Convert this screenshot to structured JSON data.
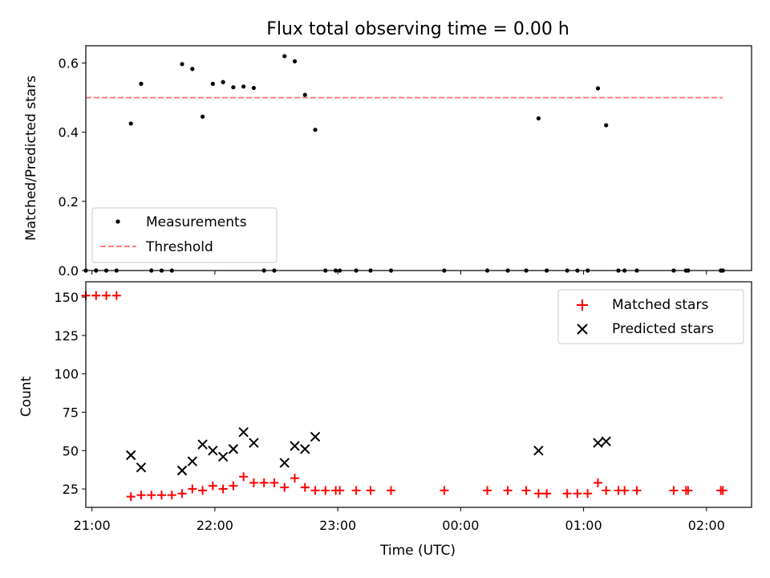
{
  "chart_data": [
    {
      "type": "scatter",
      "title": "Flux total observing time = 0.00 h",
      "xlabel": "",
      "ylabel": "Matched/Predicted stars",
      "xlim": [
        "20:57",
        "02:22"
      ],
      "ylim": [
        0,
        0.65
      ],
      "yticks": [
        "0.0",
        "0.2",
        "0.4",
        "0.6"
      ],
      "grid": false,
      "legend_position": "lower-left",
      "series": [
        {
          "name": "Measurements",
          "color": "#000000",
          "marker": "dot",
          "points": [
            [
              "20:57",
              0
            ],
            [
              "21:02",
              0
            ],
            [
              "21:07",
              0
            ],
            [
              "21:12",
              0
            ],
            [
              "21:19",
              0.425
            ],
            [
              "21:24",
              0.54
            ],
            [
              "21:29",
              0
            ],
            [
              "21:34",
              0
            ],
            [
              "21:39",
              0
            ],
            [
              "21:44",
              0.597
            ],
            [
              "21:49",
              0.583
            ],
            [
              "21:54",
              0.445
            ],
            [
              "21:59",
              0.54
            ],
            [
              "22:04",
              0.545
            ],
            [
              "22:09",
              0.53
            ],
            [
              "22:14",
              0.532
            ],
            [
              "22:19",
              0.528
            ],
            [
              "22:24",
              0
            ],
            [
              "22:29",
              0
            ],
            [
              "22:34",
              0.62
            ],
            [
              "22:39",
              0.605
            ],
            [
              "22:44",
              0.508
            ],
            [
              "22:49",
              0.407
            ],
            [
              "22:54",
              0
            ],
            [
              "22:59",
              0
            ],
            [
              "23:01",
              0
            ],
            [
              "23:09",
              0
            ],
            [
              "23:16",
              0
            ],
            [
              "23:26",
              0
            ],
            [
              "23:52",
              0
            ],
            [
              "00:13",
              0
            ],
            [
              "00:23",
              0
            ],
            [
              "00:32",
              0
            ],
            [
              "00:38",
              0.44
            ],
            [
              "00:42",
              0
            ],
            [
              "00:52",
              0
            ],
            [
              "00:57",
              0
            ],
            [
              "01:02",
              0
            ],
            [
              "01:07",
              0.527
            ],
            [
              "01:11",
              0.42
            ],
            [
              "01:17",
              0
            ],
            [
              "01:20",
              0
            ],
            [
              "01:26",
              0
            ],
            [
              "01:44",
              0
            ],
            [
              "01:50",
              0
            ],
            [
              "01:51",
              0
            ],
            [
              "02:07",
              0
            ],
            [
              "02:08",
              0
            ]
          ]
        },
        {
          "name": "Threshold",
          "color": "#ff7f7f",
          "style": "dashed",
          "points": [
            [
              "20:57",
              0.5
            ],
            [
              "02:08",
              0.5
            ]
          ]
        }
      ]
    },
    {
      "type": "scatter",
      "title": "",
      "xlabel": "Time (UTC)",
      "ylabel": "Count",
      "xlim": [
        "20:57",
        "02:22"
      ],
      "ylim": [
        13,
        160
      ],
      "xticks": [
        "21:00",
        "22:00",
        "23:00",
        "00:00",
        "01:00",
        "02:00"
      ],
      "yticks": [
        "25",
        "50",
        "75",
        "100",
        "125",
        "150"
      ],
      "grid": false,
      "legend_position": "upper-right",
      "series": [
        {
          "name": "Matched stars",
          "color": "#ff0000",
          "marker": "plus",
          "points": [
            [
              "20:57",
              151
            ],
            [
              "21:02",
              151
            ],
            [
              "21:07",
              151
            ],
            [
              "21:12",
              151
            ],
            [
              "21:19",
              20
            ],
            [
              "21:24",
              21
            ],
            [
              "21:29",
              21
            ],
            [
              "21:34",
              21
            ],
            [
              "21:39",
              21
            ],
            [
              "21:44",
              22
            ],
            [
              "21:49",
              25
            ],
            [
              "21:54",
              24
            ],
            [
              "21:59",
              27
            ],
            [
              "22:04",
              25
            ],
            [
              "22:09",
              27
            ],
            [
              "22:14",
              33
            ],
            [
              "22:19",
              29
            ],
            [
              "22:24",
              29
            ],
            [
              "22:29",
              29
            ],
            [
              "22:34",
              26
            ],
            [
              "22:39",
              32
            ],
            [
              "22:44",
              26
            ],
            [
              "22:49",
              24
            ],
            [
              "22:54",
              24
            ],
            [
              "22:59",
              24
            ],
            [
              "23:01",
              24
            ],
            [
              "23:09",
              24
            ],
            [
              "23:16",
              24
            ],
            [
              "23:26",
              24
            ],
            [
              "23:52",
              24
            ],
            [
              "00:13",
              24
            ],
            [
              "00:23",
              24
            ],
            [
              "00:32",
              24
            ],
            [
              "00:38",
              22
            ],
            [
              "00:42",
              22
            ],
            [
              "00:52",
              22
            ],
            [
              "00:57",
              22
            ],
            [
              "01:02",
              22
            ],
            [
              "01:07",
              29
            ],
            [
              "01:11",
              24
            ],
            [
              "01:17",
              24
            ],
            [
              "01:20",
              24
            ],
            [
              "01:26",
              24
            ],
            [
              "01:44",
              24
            ],
            [
              "01:50",
              24
            ],
            [
              "01:51",
              24
            ],
            [
              "02:07",
              24
            ],
            [
              "02:08",
              24
            ]
          ]
        },
        {
          "name": "Predicted stars",
          "color": "#000000",
          "marker": "x",
          "points": [
            [
              "21:19",
              47
            ],
            [
              "21:24",
              39
            ],
            [
              "21:44",
              37
            ],
            [
              "21:49",
              43
            ],
            [
              "21:54",
              54
            ],
            [
              "21:59",
              50
            ],
            [
              "22:04",
              46
            ],
            [
              "22:09",
              51
            ],
            [
              "22:14",
              62
            ],
            [
              "22:19",
              55
            ],
            [
              "22:34",
              42
            ],
            [
              "22:39",
              53
            ],
            [
              "22:44",
              51
            ],
            [
              "22:49",
              59
            ],
            [
              "00:38",
              50
            ],
            [
              "01:07",
              55
            ],
            [
              "01:11",
              56
            ]
          ]
        }
      ]
    }
  ]
}
